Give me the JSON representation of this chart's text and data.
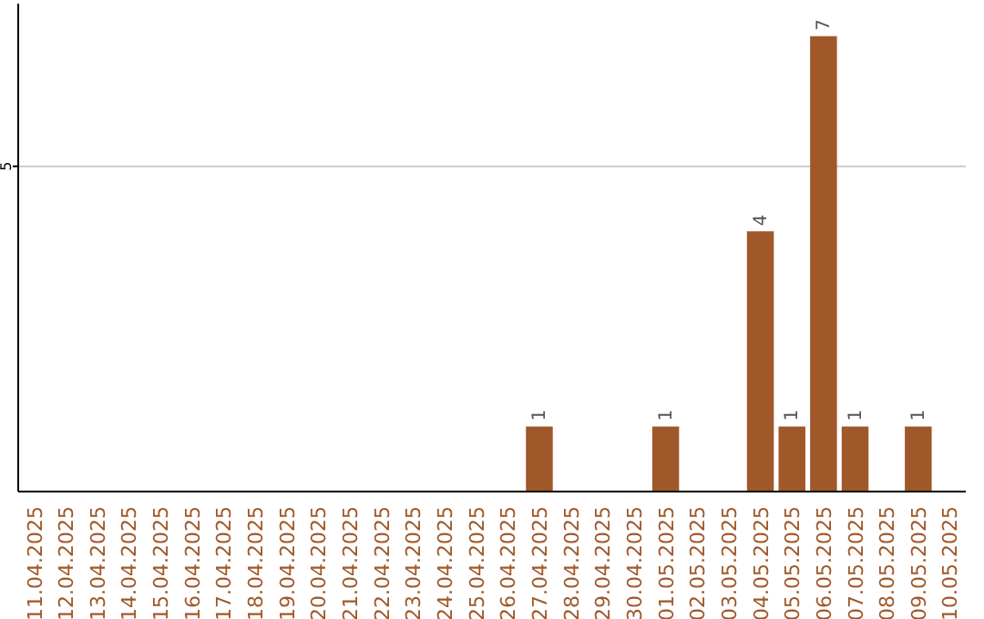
{
  "chart_data": {
    "type": "bar",
    "categories": [
      "11.04.2025",
      "12.04.2025",
      "13.04.2025",
      "14.04.2025",
      "15.04.2025",
      "16.04.2025",
      "17.04.2025",
      "18.04.2025",
      "19.04.2025",
      "20.04.2025",
      "21.04.2025",
      "22.04.2025",
      "23.04.2025",
      "24.04.2025",
      "25.04.2025",
      "26.04.2025",
      "27.04.2025",
      "28.04.2025",
      "29.04.2025",
      "30.04.2025",
      "01.05.2025",
      "02.05.2025",
      "03.05.2025",
      "04.05.2025",
      "05.05.2025",
      "06.05.2025",
      "07.05.2025",
      "08.05.2025",
      "09.05.2025",
      "10.05.2025"
    ],
    "values": [
      null,
      null,
      null,
      null,
      null,
      null,
      null,
      null,
      null,
      null,
      null,
      null,
      null,
      null,
      null,
      null,
      1,
      null,
      null,
      null,
      1,
      null,
      null,
      4,
      1,
      7,
      1,
      null,
      1,
      null
    ],
    "color": "#a0582a",
    "ylim": [
      0,
      7.5
    ],
    "yticks": [
      5
    ],
    "grid": "y",
    "data_labels": true
  }
}
